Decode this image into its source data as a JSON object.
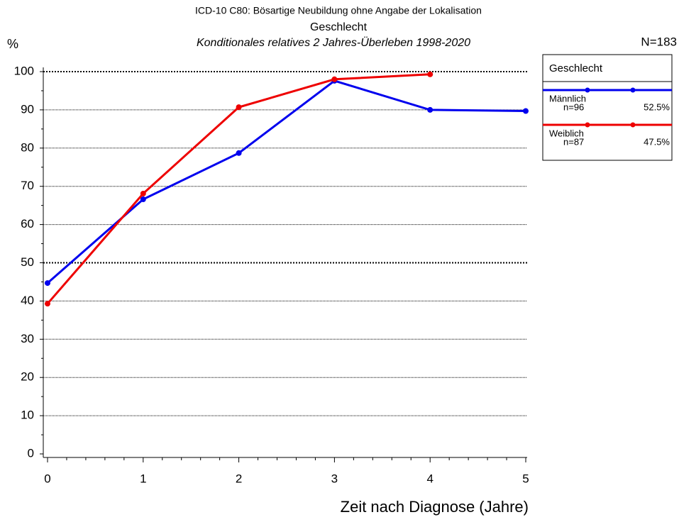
{
  "chart_data": {
    "type": "line",
    "title": "ICD-10 C80: Bösartige Neubildung ohne Angabe der Lokalisation",
    "subtitle": "Geschlecht",
    "subtitle2": "Konditionales relatives 2 Jahres-Überleben 1998-2020",
    "y_label": "%",
    "total_label": "N=183",
    "x_label": "Zeit nach Diagnose (Jahre)",
    "x": [
      0,
      1,
      2,
      3,
      4,
      5
    ],
    "xlim": [
      0,
      5
    ],
    "xticks": [
      0,
      1,
      2,
      3,
      4,
      5
    ],
    "ylim": [
      0,
      100
    ],
    "yticks": [
      0,
      10,
      20,
      30,
      40,
      50,
      60,
      70,
      80,
      90,
      100
    ],
    "grid": true,
    "reference_lines": [
      50,
      100
    ],
    "legend_title": "Geschlecht",
    "legend_position": "upper right outside",
    "series": [
      {
        "name": "Männlich",
        "color": "#0000ee",
        "n_label": "n=96",
        "share_label": "52.5%",
        "values": [
          44.7,
          66.6,
          78.7,
          97.6,
          90.0,
          89.7
        ]
      },
      {
        "name": "Weiblich",
        "color": "#ee0000",
        "n_label": "n=87",
        "share_label": "47.5%",
        "values": [
          39.3,
          68.1,
          90.7,
          98.0,
          99.3,
          null
        ]
      }
    ]
  }
}
